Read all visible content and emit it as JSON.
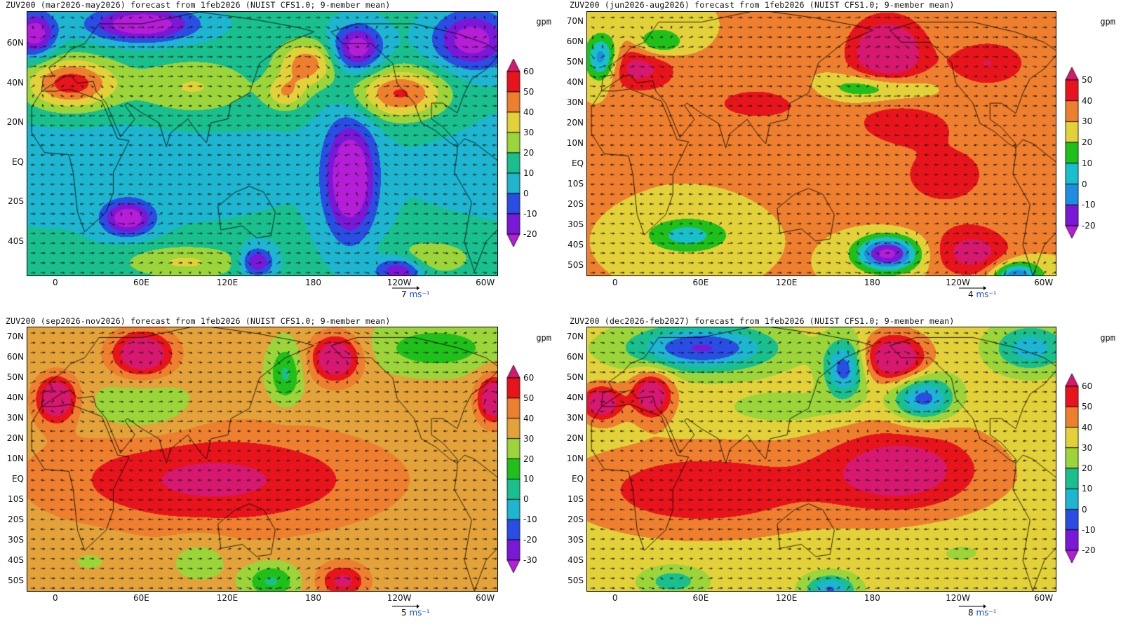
{
  "panels": [
    {
      "title": "ZUV200 (mar2026-may2026) forecast from 1feb2026 (NUIST CFS1.0; 9-member mean)",
      "unit": "gpm",
      "ylabels": [
        "60N",
        "40N",
        "20N",
        "EQ",
        "20S",
        "40S"
      ],
      "xlabels": [
        "0",
        "60E",
        "120E",
        "180",
        "120W",
        "60W"
      ],
      "colorbar": {
        "levels": [
          "60",
          "50",
          "40",
          "30",
          "20",
          "10",
          "0",
          "-10",
          "-20"
        ],
        "colors": [
          "#d6186e",
          "#e8141c",
          "#ee7f2e",
          "#e3d13a",
          "#9bd53a",
          "#19c08e",
          "#1db5cf",
          "#2a4de3",
          "#7a18d8",
          "#b31ed6"
        ]
      },
      "ref_vector": {
        "value": "7",
        "unit": "ms⁻¹"
      }
    },
    {
      "title": "ZUV200 (jun2026-aug2026) forecast from 1feb2026 (NUIST CFS1.0; 9-member mean)",
      "unit": "gpm",
      "ylabels": [
        "70N",
        "60N",
        "50N",
        "40N",
        "30N",
        "20N",
        "10N",
        "EQ",
        "10S",
        "20S",
        "30S",
        "40S",
        "50S"
      ],
      "xlabels": [
        "0",
        "60E",
        "120E",
        "180",
        "120W",
        "60W"
      ],
      "colorbar": {
        "levels": [
          "50",
          "40",
          "30",
          "20",
          "10",
          "0",
          "-10",
          "-20"
        ],
        "colors": [
          "#d6186e",
          "#e8141c",
          "#ee7f2e",
          "#e3d13a",
          "#20c01a",
          "#19bfcb",
          "#1e8ee0",
          "#7a18d8",
          "#b31ed6"
        ]
      },
      "ref_vector": {
        "value": "4",
        "unit": "ms⁻¹"
      }
    },
    {
      "title": "ZUV200 (sep2026-nov2026) forecast from 1feb2026 (NUIST CFS1.0; 9-member mean)",
      "unit": "gpm",
      "ylabels": [
        "70N",
        "60N",
        "50N",
        "40N",
        "30N",
        "20N",
        "10N",
        "EQ",
        "10S",
        "20S",
        "30S",
        "40S",
        "50S"
      ],
      "xlabels": [
        "0",
        "60E",
        "120E",
        "180",
        "120W",
        "60W"
      ],
      "colorbar": {
        "levels": [
          "60",
          "50",
          "40",
          "30",
          "20",
          "10",
          "0",
          "-10",
          "-20",
          "-30"
        ],
        "colors": [
          "#d6186e",
          "#e8141c",
          "#ee7f2e",
          "#e3a33a",
          "#9bd53a",
          "#20c01a",
          "#19c08e",
          "#1db5cf",
          "#2a4de3",
          "#7a18d8",
          "#b31ed6"
        ]
      },
      "ref_vector": {
        "value": "5",
        "unit": "ms⁻¹"
      }
    },
    {
      "title": "ZUV200 (dec2026-feb2027) forecast from 1feb2026 (NUIST CFS1.0; 9-member mean)",
      "unit": "gpm",
      "ylabels": [
        "70N",
        "60N",
        "50N",
        "40N",
        "30N",
        "20N",
        "10N",
        "EQ",
        "10S",
        "20S",
        "30S",
        "40S",
        "50S"
      ],
      "xlabels": [
        "0",
        "60E",
        "120E",
        "180",
        "120W",
        "60W"
      ],
      "colorbar": {
        "levels": [
          "60",
          "50",
          "40",
          "30",
          "20",
          "10",
          "0",
          "-10",
          "-20"
        ],
        "colors": [
          "#d6186e",
          "#e8141c",
          "#ee7f2e",
          "#e3d13a",
          "#9bd53a",
          "#19c08e",
          "#1db5cf",
          "#2a4de3",
          "#7a18d8",
          "#b31ed6"
        ]
      },
      "ref_vector": {
        "value": "8",
        "unit": "ms⁻¹"
      }
    }
  ]
}
